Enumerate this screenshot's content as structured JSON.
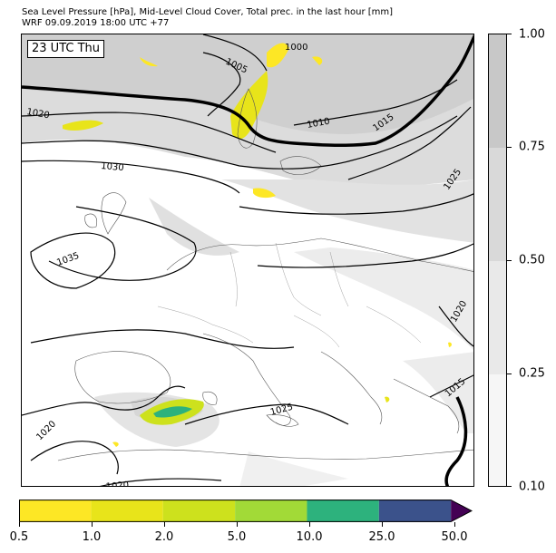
{
  "title": {
    "line1": "Sea Level Pressure [hPa], Mid-Level Cloud Cover, Total prec. in the last hour [mm]",
    "line2": "WRF 09.09.2019 18:00 UTC +77"
  },
  "map": {
    "time_label": "23 UTC Thu",
    "isobar_labels": [
      "1000",
      "1005",
      "1010",
      "1015",
      "1020",
      "1025",
      "1030",
      "1035",
      "1020",
      "1025",
      "1020",
      "1020",
      "1015",
      "1020",
      "1025"
    ]
  },
  "cloud_colorbar": {
    "ticks": [
      "1.00",
      "0.75",
      "0.50",
      "0.25",
      "0.10"
    ],
    "colors": [
      "#c8c8c8",
      "#d8d8d8",
      "#e8e8e8",
      "#f6f6f6"
    ]
  },
  "precip_colorbar": {
    "ticks": [
      "0.5",
      "1.0",
      "2.0",
      "5.0",
      "10.0",
      "25.0",
      "50.0"
    ],
    "colors": [
      "#fde725",
      "#e8e41a",
      "#cde11d",
      "#a2da37",
      "#2db27d",
      "#3b528b",
      "#440154"
    ]
  }
}
